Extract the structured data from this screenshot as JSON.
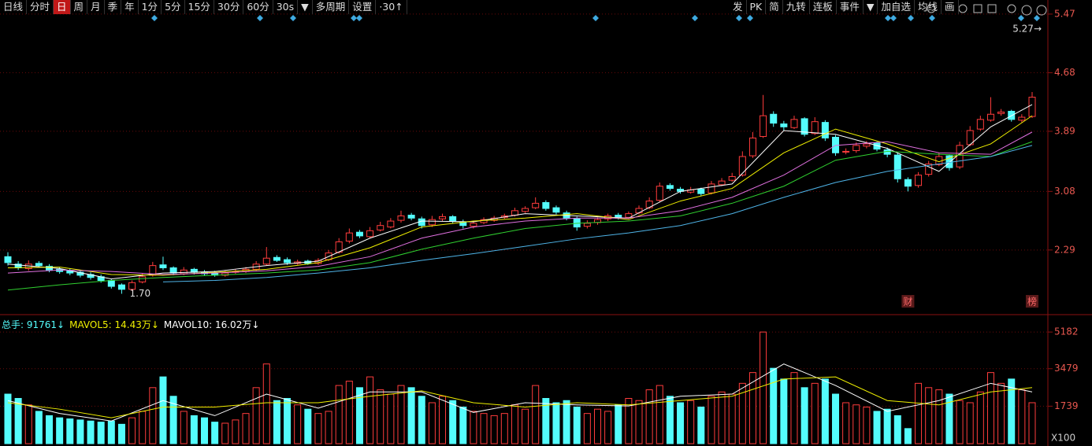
{
  "toolbar": {
    "left": [
      "日线",
      "分时",
      "日",
      "周",
      "月",
      "季",
      "年",
      "1分",
      "5分",
      "15分",
      "30分",
      "60分",
      "30s",
      "▼",
      "多周期",
      "设置",
      "·30↑"
    ],
    "selected": "日",
    "right": [
      "发",
      "PK",
      "简",
      "九转",
      "连板",
      "事件",
      "▼",
      "加自选",
      "均线",
      "画"
    ]
  },
  "chart_data": [
    {
      "type": "candlestick",
      "up_color": "#ff3c3c",
      "down_color": "#54fcfc",
      "grid": true,
      "ylim": [
        1.44,
        5.66
      ],
      "yticks": [
        2.29,
        3.08,
        3.89,
        4.68,
        5.47
      ],
      "open": [
        2.2,
        2.1,
        2.04,
        2.11,
        2.07,
        2.03,
        2.01,
        1.99,
        1.96,
        1.93,
        1.88,
        1.82,
        1.76,
        1.86,
        1.95,
        2.09,
        2.05,
        1.97,
        2.03,
        1.99,
        1.98,
        1.95,
        1.99,
        2.0,
        2.03,
        2.1,
        2.19,
        2.16,
        2.11,
        2.14,
        2.11,
        2.16,
        2.26,
        2.41,
        2.53,
        2.47,
        2.56,
        2.6,
        2.69,
        2.76,
        2.71,
        2.63,
        2.71,
        2.74,
        2.67,
        2.61,
        2.66,
        2.69,
        2.73,
        2.76,
        2.81,
        2.86,
        2.93,
        2.86,
        2.79,
        2.71,
        2.61,
        2.66,
        2.71,
        2.76,
        2.73,
        2.79,
        2.86,
        2.96,
        3.16,
        3.11,
        3.07,
        3.11,
        3.06,
        3.17,
        3.23,
        3.3,
        3.56,
        3.82,
        4.12,
        3.99,
        3.94,
        4.06,
        3.86,
        4.01,
        3.81,
        3.61,
        3.63,
        3.69,
        3.73,
        3.64,
        3.57,
        3.24,
        3.16,
        3.31,
        3.44,
        3.56,
        3.41,
        3.71,
        3.92,
        4.04,
        4.13,
        4.16,
        4.04,
        4.09
      ],
      "high": [
        2.26,
        2.14,
        2.15,
        2.14,
        2.1,
        2.06,
        2.04,
        2.02,
        1.99,
        1.96,
        1.9,
        1.84,
        1.88,
        1.97,
        2.13,
        2.2,
        2.07,
        2.06,
        2.05,
        2.02,
        2.01,
        2.01,
        2.03,
        2.06,
        2.14,
        2.33,
        2.22,
        2.19,
        2.16,
        2.16,
        2.18,
        2.29,
        2.45,
        2.58,
        2.56,
        2.6,
        2.67,
        2.72,
        2.82,
        2.79,
        2.74,
        2.75,
        2.78,
        2.76,
        2.7,
        2.68,
        2.73,
        2.75,
        2.78,
        2.86,
        2.88,
        3.0,
        2.96,
        2.89,
        2.82,
        2.74,
        2.69,
        2.73,
        2.78,
        2.79,
        2.81,
        2.89,
        3.0,
        3.2,
        3.19,
        3.14,
        3.14,
        3.13,
        3.22,
        3.26,
        3.33,
        3.62,
        3.88,
        4.38,
        4.16,
        4.03,
        4.1,
        4.08,
        4.08,
        4.04,
        3.84,
        3.66,
        3.74,
        3.76,
        3.75,
        3.67,
        3.6,
        3.27,
        3.34,
        3.49,
        3.6,
        3.58,
        3.75,
        3.96,
        4.1,
        4.35,
        4.19,
        4.18,
        4.12,
        4.42
      ],
      "low": [
        2.08,
        2.02,
        2.01,
        2.05,
        1.99,
        1.97,
        1.95,
        1.92,
        1.89,
        1.85,
        1.77,
        1.7,
        1.74,
        1.84,
        1.93,
        2.02,
        1.95,
        1.95,
        1.96,
        1.95,
        1.93,
        1.93,
        1.97,
        1.98,
        2.01,
        2.08,
        2.13,
        2.09,
        2.09,
        2.09,
        2.09,
        2.14,
        2.24,
        2.38,
        2.45,
        2.45,
        2.54,
        2.58,
        2.66,
        2.69,
        2.58,
        2.6,
        2.68,
        2.65,
        2.58,
        2.58,
        2.64,
        2.67,
        2.71,
        2.74,
        2.79,
        2.84,
        2.82,
        2.77,
        2.69,
        2.55,
        2.58,
        2.63,
        2.68,
        2.7,
        2.71,
        2.77,
        2.84,
        2.94,
        3.09,
        3.05,
        3.05,
        3.02,
        3.04,
        3.15,
        3.21,
        3.28,
        3.53,
        3.8,
        3.95,
        3.9,
        3.92,
        3.82,
        3.84,
        3.76,
        3.56,
        3.58,
        3.6,
        3.66,
        3.62,
        3.54,
        3.2,
        3.08,
        3.13,
        3.28,
        3.42,
        3.36,
        3.38,
        3.69,
        3.9,
        4.02,
        4.1,
        4.02,
        4.01,
        4.07
      ],
      "close": [
        2.12,
        2.05,
        2.1,
        2.08,
        2.02,
        2.0,
        1.98,
        1.95,
        1.92,
        1.88,
        1.8,
        1.76,
        1.85,
        1.93,
        2.08,
        2.05,
        1.98,
        2.02,
        1.99,
        1.97,
        1.95,
        1.98,
        2.0,
        2.03,
        2.1,
        2.18,
        2.15,
        2.12,
        2.13,
        2.11,
        2.15,
        2.25,
        2.4,
        2.52,
        2.48,
        2.55,
        2.62,
        2.68,
        2.75,
        2.72,
        2.62,
        2.7,
        2.74,
        2.68,
        2.62,
        2.65,
        2.7,
        2.72,
        2.75,
        2.82,
        2.85,
        2.92,
        2.85,
        2.8,
        2.72,
        2.6,
        2.65,
        2.7,
        2.75,
        2.72,
        2.78,
        2.85,
        2.95,
        3.15,
        3.12,
        3.08,
        3.1,
        3.05,
        3.18,
        3.22,
        3.28,
        3.55,
        3.8,
        4.1,
        4.0,
        3.95,
        4.05,
        3.85,
        4.02,
        3.8,
        3.6,
        3.62,
        3.7,
        3.72,
        3.65,
        3.58,
        3.25,
        3.15,
        3.3,
        3.45,
        3.55,
        3.4,
        3.7,
        3.9,
        4.05,
        4.12,
        4.15,
        4.05,
        4.08,
        4.35
      ],
      "ma": [
        {
          "color": "#ffffff",
          "x": [
            0,
            5,
            10,
            15,
            20,
            25,
            30,
            35,
            40,
            45,
            50,
            55,
            60,
            65,
            70,
            75,
            80,
            85,
            90,
            95,
            99
          ],
          "values": [
            2.1,
            2.04,
            1.9,
            1.98,
            2.0,
            2.08,
            2.14,
            2.45,
            2.68,
            2.67,
            2.78,
            2.75,
            2.72,
            3.08,
            3.18,
            3.9,
            3.85,
            3.66,
            3.35,
            3.95,
            4.25
          ]
        },
        {
          "color": "#f0f000",
          "x": [
            0,
            5,
            10,
            15,
            20,
            25,
            30,
            35,
            40,
            45,
            50,
            55,
            60,
            65,
            70,
            75,
            80,
            85,
            90,
            95,
            99
          ],
          "values": [
            2.05,
            2.06,
            1.96,
            1.95,
            1.99,
            2.03,
            2.12,
            2.32,
            2.6,
            2.68,
            2.72,
            2.78,
            2.7,
            2.95,
            3.12,
            3.6,
            3.92,
            3.72,
            3.48,
            3.72,
            4.1
          ]
        },
        {
          "color": "#e070e0",
          "x": [
            0,
            5,
            10,
            15,
            20,
            25,
            30,
            35,
            40,
            45,
            50,
            55,
            60,
            65,
            70,
            75,
            80,
            85,
            90,
            95,
            99
          ],
          "values": [
            1.98,
            2.02,
            2.0,
            1.96,
            1.98,
            2.01,
            2.07,
            2.2,
            2.45,
            2.6,
            2.68,
            2.72,
            2.72,
            2.82,
            3.0,
            3.3,
            3.7,
            3.75,
            3.6,
            3.58,
            3.88
          ]
        },
        {
          "color": "#30d030",
          "x": [
            0,
            5,
            10,
            15,
            20,
            25,
            30,
            35,
            40,
            45,
            50,
            55,
            60,
            65,
            70,
            75,
            80,
            85,
            90,
            95,
            99
          ],
          "values": [
            1.75,
            1.82,
            1.88,
            1.92,
            1.95,
            1.98,
            2.02,
            2.12,
            2.3,
            2.45,
            2.58,
            2.65,
            2.68,
            2.75,
            2.92,
            3.15,
            3.5,
            3.62,
            3.58,
            3.55,
            3.75
          ]
        },
        {
          "color": "#4fb4e8",
          "x": [
            15,
            20,
            25,
            30,
            35,
            40,
            45,
            50,
            55,
            60,
            65,
            70,
            75,
            80,
            85,
            90,
            95,
            99
          ],
          "values": [
            1.86,
            1.88,
            1.92,
            1.98,
            2.05,
            2.15,
            2.24,
            2.34,
            2.44,
            2.52,
            2.62,
            2.78,
            3.0,
            3.2,
            3.35,
            3.45,
            3.55,
            3.7
          ]
        }
      ],
      "annotations": [
        {
          "label": "1.70",
          "value": 1.7,
          "x": 11
        },
        {
          "label": "5.27→",
          "value": 5.27,
          "x": 99
        }
      ],
      "events": [
        {
          "label": "财",
          "x": 87
        },
        {
          "label": "榜",
          "x": 99
        }
      ]
    },
    {
      "type": "bar",
      "grid": true,
      "ylim": [
        0,
        5880
      ],
      "yticks": [
        1739,
        3479,
        5182
      ],
      "unit_label": "X100",
      "values": [
        2300,
        2100,
        1800,
        1500,
        1300,
        1200,
        1150,
        1100,
        1050,
        1000,
        1050,
        900,
        1200,
        1500,
        2600,
        3100,
        2200,
        1500,
        1300,
        1200,
        1000,
        950,
        1100,
        1400,
        2600,
        3700,
        2000,
        2100,
        1800,
        1600,
        1400,
        1500,
        2700,
        2900,
        2600,
        3100,
        2500,
        2300,
        2700,
        2600,
        2200,
        1900,
        2200,
        2000,
        1700,
        1500,
        1400,
        1300,
        1400,
        1800,
        1600,
        2700,
        2100,
        1900,
        2000,
        1700,
        1400,
        1600,
        1500,
        1800,
        2100,
        2000,
        2500,
        2700,
        2200,
        1900,
        2000,
        1700,
        2200,
        2400,
        2300,
        2800,
        3300,
        5182,
        3500,
        3000,
        3300,
        2600,
        2800,
        3000,
        2300,
        1900,
        1800,
        1700,
        1500,
        1600,
        1300,
        700,
        2800,
        2600,
        2500,
        2300,
        2000,
        1900,
        2400,
        3300,
        2800,
        3000,
        2500,
        1900
      ],
      "ma": [
        {
          "color": "#ffffff",
          "x": [
            0,
            5,
            10,
            15,
            20,
            25,
            30,
            35,
            40,
            45,
            50,
            55,
            60,
            65,
            70,
            75,
            80,
            85,
            90,
            95,
            99
          ],
          "values": [
            2000,
            1400,
            1050,
            2000,
            1300,
            2300,
            1650,
            2400,
            2400,
            1450,
            1900,
            1800,
            1750,
            2200,
            2300,
            3700,
            2700,
            1500,
            2000,
            2800,
            2400
          ]
        },
        {
          "color": "#f0f000",
          "x": [
            0,
            5,
            10,
            15,
            20,
            25,
            30,
            35,
            40,
            45,
            50,
            55,
            60,
            65,
            70,
            75,
            80,
            85,
            90,
            95,
            99
          ],
          "values": [
            1900,
            1600,
            1200,
            1700,
            1700,
            1900,
            1900,
            2200,
            2450,
            1900,
            1700,
            1900,
            1800,
            2000,
            2200,
            3000,
            3100,
            2000,
            1800,
            2400,
            2600
          ]
        }
      ],
      "legend": [
        {
          "text": "总手: 91761↓",
          "color": "#54fcfc"
        },
        {
          "text": "MAVOL5: 14.43万↓",
          "color": "#f0f000"
        },
        {
          "text": "MAVOL10: 16.02万↓",
          "color": "#ffffff"
        }
      ]
    }
  ]
}
